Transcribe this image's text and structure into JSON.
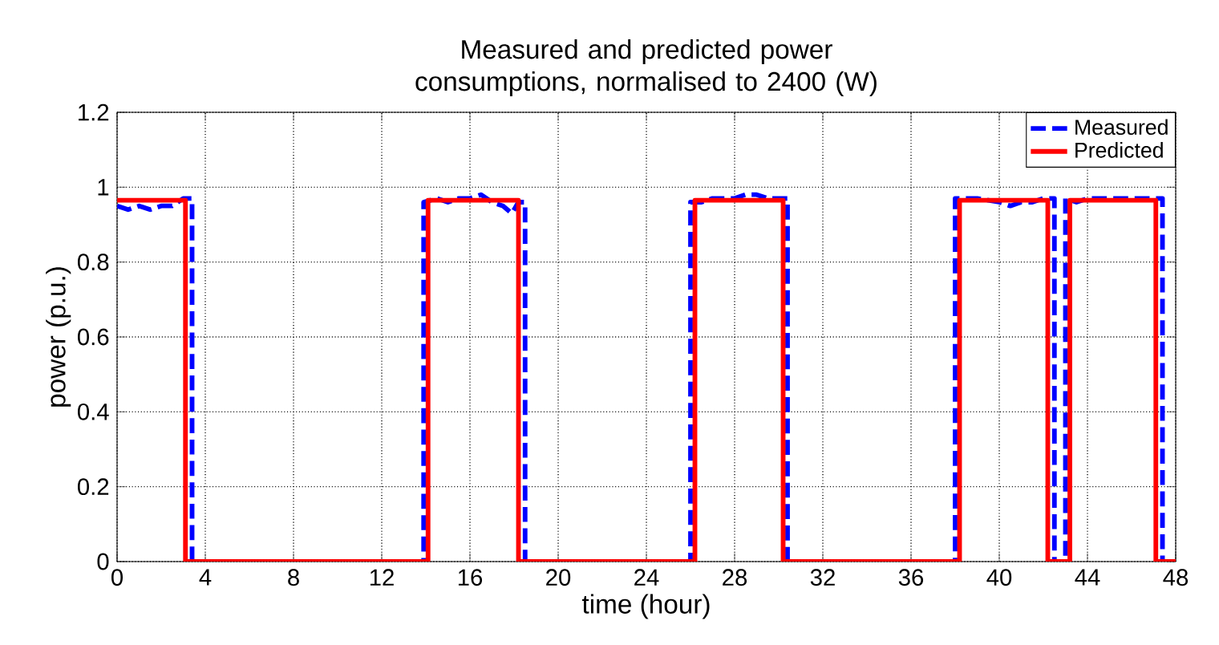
{
  "chart_data": {
    "type": "line",
    "title": "Measured and predicted power consumptions, normalised to 2400 (W)",
    "xlabel": "time (hour)",
    "ylabel": "power (p.u.)",
    "xlim": [
      0,
      48
    ],
    "ylim": [
      0,
      1.2
    ],
    "xticks": [
      0,
      4,
      8,
      12,
      16,
      20,
      24,
      28,
      32,
      36,
      40,
      44,
      48
    ],
    "yticks": [
      0,
      0.2,
      0.4,
      0.6,
      0.8,
      1,
      1.2
    ],
    "grid": true,
    "legend": "top right",
    "series": [
      {
        "name": "Measured",
        "color": "#0000ff",
        "line_style": "dashed",
        "x": [
          0,
          0.5,
          1,
          1.5,
          2,
          2.5,
          3,
          3.4,
          3.4,
          13.9,
          13.9,
          14.5,
          15,
          15.5,
          16,
          16.5,
          17,
          17.5,
          17.9,
          18.2,
          18.5,
          18.5,
          26,
          26,
          26.5,
          27,
          28,
          28.5,
          29,
          29.5,
          30,
          30.4,
          30.4,
          38,
          38,
          38.5,
          39,
          40,
          40.5,
          41,
          41.5,
          42,
          42.5,
          42.5,
          43,
          43,
          43.5,
          44,
          45,
          46,
          47,
          47.4,
          47.4,
          48
        ],
        "values": [
          0.95,
          0.94,
          0.95,
          0.94,
          0.95,
          0.95,
          0.97,
          0.97,
          0,
          0,
          0.96,
          0.97,
          0.96,
          0.97,
          0.97,
          0.98,
          0.96,
          0.95,
          0.93,
          0.96,
          0.96,
          0,
          0,
          0.96,
          0.96,
          0.97,
          0.97,
          0.98,
          0.98,
          0.97,
          0.97,
          0.97,
          0,
          0,
          0.97,
          0.97,
          0.97,
          0.96,
          0.95,
          0.96,
          0.96,
          0.97,
          0.97,
          0,
          0,
          0.97,
          0.96,
          0.97,
          0.97,
          0.97,
          0.97,
          0.97,
          0,
          0
        ]
      },
      {
        "name": "Predicted",
        "color": "#ff0000",
        "line_style": "solid",
        "x": [
          0,
          3.1,
          3.1,
          14.1,
          14.1,
          18.2,
          18.2,
          26.2,
          26.2,
          30.2,
          30.2,
          38.2,
          38.2,
          42.2,
          42.2,
          43.2,
          43.2,
          47.1,
          47.1,
          48
        ],
        "values": [
          0.965,
          0.965,
          0,
          0,
          0.965,
          0.965,
          0,
          0,
          0.965,
          0.965,
          0,
          0,
          0.965,
          0.965,
          0,
          0,
          0.965,
          0.965,
          0,
          0
        ]
      }
    ]
  }
}
